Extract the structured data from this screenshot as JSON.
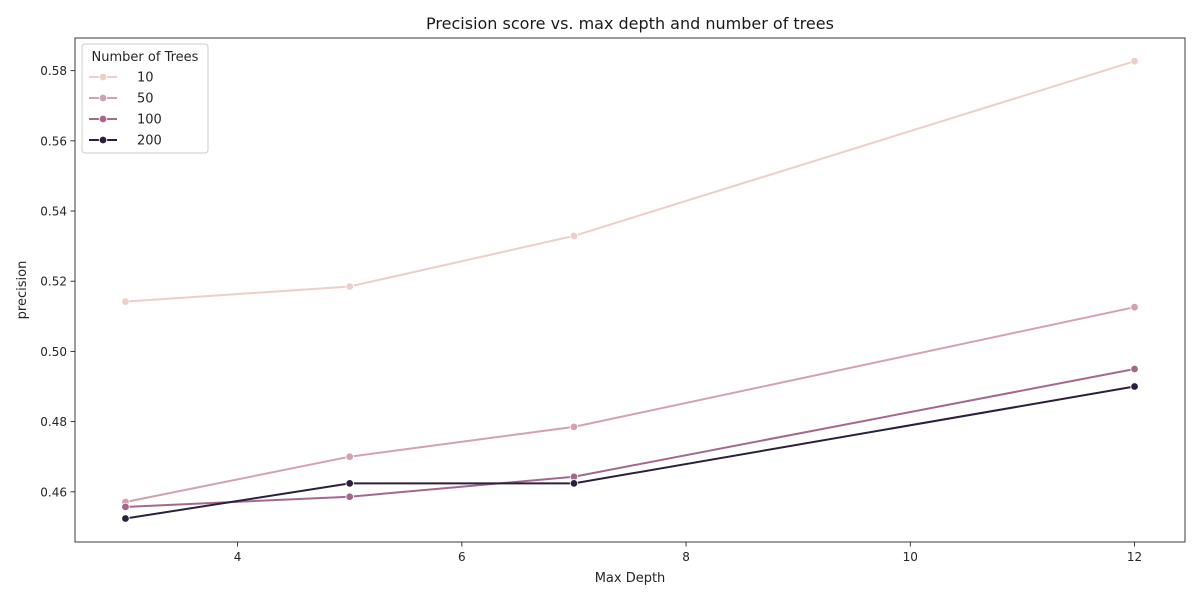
{
  "chart_data": {
    "type": "line",
    "title": "Precision score vs. max depth and number of trees",
    "xlabel": "Max Depth",
    "ylabel": "precision",
    "x": [
      3,
      5,
      7,
      12
    ],
    "xlim": [
      2.55,
      12.45
    ],
    "ylim": [
      0.4457,
      0.5893
    ],
    "xticks": [
      4,
      6,
      8,
      10,
      12
    ],
    "yticks": [
      0.46,
      0.48,
      0.5,
      0.52,
      0.54,
      0.56,
      0.58
    ],
    "grid": false,
    "legend": {
      "title": "Number of Trees",
      "position": "top-left"
    },
    "series": [
      {
        "name": "10",
        "color": "#ebd0c8",
        "values": [
          0.5142,
          0.5185,
          0.5329,
          0.5827
        ]
      },
      {
        "name": "50",
        "color": "#d3a1b2",
        "values": [
          0.4571,
          0.47,
          0.4785,
          0.5126
        ]
      },
      {
        "name": "100",
        "color": "#a4688e",
        "values": [
          0.4557,
          0.4586,
          0.4643,
          0.495
        ]
      },
      {
        "name": "200",
        "color": "#2c1e3d",
        "values": [
          0.4524,
          0.4624,
          0.4624,
          0.49
        ]
      }
    ]
  }
}
